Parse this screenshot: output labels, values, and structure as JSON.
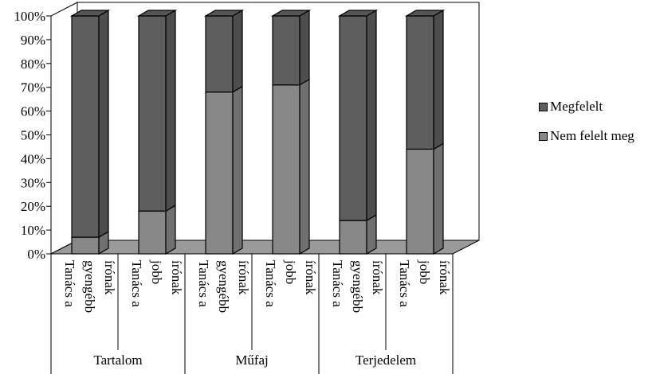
{
  "chart_data": {
    "type": "bar",
    "stacked": true,
    "percent": true,
    "three_d": true,
    "ylim": [
      0,
      100
    ],
    "yticks": [
      "0%",
      "10%",
      "20%",
      "30%",
      "40%",
      "50%",
      "60%",
      "70%",
      "80%",
      "90%",
      "100%"
    ],
    "groups": [
      "Tartalom",
      "Műfaj",
      "Terjedelem"
    ],
    "categories": [
      [
        "Tanács a",
        "gyengébb",
        "írónak"
      ],
      [
        "Tanács a",
        "jobb",
        "írónak"
      ],
      [
        "Tanács a",
        "gyengébb",
        "írónak"
      ],
      [
        "Tanács a",
        "jobb",
        "írónak"
      ],
      [
        "Tanács a",
        "gyengébb",
        "írónak"
      ],
      [
        "Tanács a",
        "jobb",
        "írónak"
      ]
    ],
    "series": [
      {
        "name": "Nem felelt meg",
        "color": "#888888",
        "values": [
          7,
          18,
          68,
          71,
          14,
          44
        ]
      },
      {
        "name": "Megfelelt",
        "color": "#5e5e5e",
        "values": [
          93,
          82,
          32,
          29,
          86,
          56
        ]
      }
    ],
    "legend_position": "right",
    "grid": false
  }
}
